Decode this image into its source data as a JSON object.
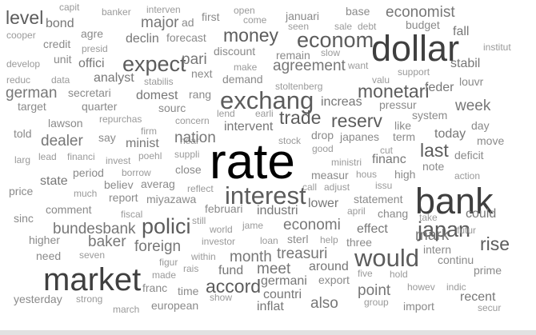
{
  "colors": {
    "small": "#9a9a9a",
    "mid": "#8a8a8a",
    "medium": "#777777",
    "large": "#5c5c5c",
    "huge": "#3f3f3f",
    "max": "#000000"
  },
  "words": [
    {
      "id": "level",
      "text": "level",
      "weight": 5
    },
    {
      "id": "capit",
      "text": "capit",
      "weight": 1
    },
    {
      "id": "banker",
      "text": "banker",
      "weight": 1
    },
    {
      "id": "interven",
      "text": "interven",
      "weight": 1
    },
    {
      "id": "ad",
      "text": "ad",
      "weight": 2
    },
    {
      "id": "first",
      "text": "first",
      "weight": 2
    },
    {
      "id": "open",
      "text": "open",
      "weight": 1
    },
    {
      "id": "januari",
      "text": "januari",
      "weight": 2
    },
    {
      "id": "base",
      "text": "base",
      "weight": 2
    },
    {
      "id": "economist",
      "text": "economist",
      "weight": 4
    },
    {
      "id": "cooper",
      "text": "cooper",
      "weight": 1
    },
    {
      "id": "bond",
      "text": "bond",
      "weight": 3
    },
    {
      "id": "major",
      "text": "major",
      "weight": 4
    },
    {
      "id": "come",
      "text": "come",
      "weight": 1
    },
    {
      "id": "seen",
      "text": "seen",
      "weight": 1
    },
    {
      "id": "sale",
      "text": "sale",
      "weight": 1
    },
    {
      "id": "debt",
      "text": "debt",
      "weight": 1
    },
    {
      "id": "budget",
      "text": "budget",
      "weight": 2
    },
    {
      "id": "agre",
      "text": "agre",
      "weight": 2
    },
    {
      "id": "declin",
      "text": "declin",
      "weight": 3
    },
    {
      "id": "forecast",
      "text": "forecast",
      "weight": 2
    },
    {
      "id": "money",
      "text": "money",
      "weight": 5
    },
    {
      "id": "econom",
      "text": "econom",
      "weight": 6
    },
    {
      "id": "fall",
      "text": "fall",
      "weight": 3
    },
    {
      "id": "dollar",
      "text": "dollar",
      "weight": 9
    },
    {
      "id": "credit",
      "text": "credit",
      "weight": 2
    },
    {
      "id": "presid",
      "text": "presid",
      "weight": 1
    },
    {
      "id": "discount",
      "text": "discount",
      "weight": 2
    },
    {
      "id": "slow",
      "text": "slow",
      "weight": 1
    },
    {
      "id": "institut",
      "text": "institut",
      "weight": 1
    },
    {
      "id": "develop",
      "text": "develop",
      "weight": 1
    },
    {
      "id": "unit",
      "text": "unit",
      "weight": 2
    },
    {
      "id": "expect",
      "text": "expect",
      "weight": 6
    },
    {
      "id": "pari",
      "text": "pari",
      "weight": 4
    },
    {
      "id": "remain",
      "text": "remain",
      "weight": 2
    },
    {
      "id": "offici",
      "text": "offici",
      "weight": 3
    },
    {
      "id": "make",
      "text": "make",
      "weight": 1
    },
    {
      "id": "agreement",
      "text": "agreement",
      "weight": 4
    },
    {
      "id": "want",
      "text": "want",
      "weight": 1
    },
    {
      "id": "stabil",
      "text": "stabil",
      "weight": 3
    },
    {
      "id": "next",
      "text": "next",
      "weight": 2
    },
    {
      "id": "support",
      "text": "support",
      "weight": 1
    },
    {
      "id": "reduc",
      "text": "reduc",
      "weight": 1
    },
    {
      "id": "data",
      "text": "data",
      "weight": 1
    },
    {
      "id": "analyst",
      "text": "analyst",
      "weight": 3
    },
    {
      "id": "stabilis",
      "text": "stabilis",
      "weight": 1
    },
    {
      "id": "demand",
      "text": "demand",
      "weight": 2
    },
    {
      "id": "valu",
      "text": "valu",
      "weight": 1
    },
    {
      "id": "louvr",
      "text": "louvr",
      "weight": 2
    },
    {
      "id": "german",
      "text": "german",
      "weight": 4
    },
    {
      "id": "secretari",
      "text": "secretari",
      "weight": 2
    },
    {
      "id": "domest",
      "text": "domest",
      "weight": 3
    },
    {
      "id": "rang",
      "text": "rang",
      "weight": 2
    },
    {
      "id": "stoltenberg",
      "text": "stoltenberg",
      "weight": 1
    },
    {
      "id": "monetari",
      "text": "monetari",
      "weight": 5
    },
    {
      "id": "feder",
      "text": "feder",
      "weight": 3
    },
    {
      "id": "exchang",
      "text": "exchang",
      "weight": 7
    },
    {
      "id": "target",
      "text": "target",
      "weight": 2
    },
    {
      "id": "quarter",
      "text": "quarter",
      "weight": 2
    },
    {
      "id": "sourc",
      "text": "sourc",
      "weight": 2
    },
    {
      "id": "increas",
      "text": "increas",
      "weight": 3
    },
    {
      "id": "pressur",
      "text": "pressur",
      "weight": 2
    },
    {
      "id": "week",
      "text": "week",
      "weight": 4
    },
    {
      "id": "lend",
      "text": "lend",
      "weight": 1
    },
    {
      "id": "earli",
      "text": "earli",
      "weight": 1
    },
    {
      "id": "lawson",
      "text": "lawson",
      "weight": 2
    },
    {
      "id": "repurchas",
      "text": "repurchas",
      "weight": 1
    },
    {
      "id": "concern",
      "text": "concern",
      "weight": 1
    },
    {
      "id": "trade",
      "text": "trade",
      "weight": 5
    },
    {
      "id": "reserv",
      "text": "reserv",
      "weight": 5
    },
    {
      "id": "system",
      "text": "system",
      "weight": 2
    },
    {
      "id": "day",
      "text": "day",
      "weight": 2
    },
    {
      "id": "told",
      "text": "told",
      "weight": 2
    },
    {
      "id": "firm",
      "text": "firm",
      "weight": 1
    },
    {
      "id": "near",
      "text": "near",
      "weight": 1
    },
    {
      "id": "intervent",
      "text": "intervent",
      "weight": 3
    },
    {
      "id": "like",
      "text": "like",
      "weight": 2
    },
    {
      "id": "dealer",
      "text": "dealer",
      "weight": 4
    },
    {
      "id": "say",
      "text": "say",
      "weight": 2
    },
    {
      "id": "minist",
      "text": "minist",
      "weight": 3
    },
    {
      "id": "nation",
      "text": "nation",
      "weight": 4
    },
    {
      "id": "drop",
      "text": "drop",
      "weight": 2
    },
    {
      "id": "japanes",
      "text": "japanes",
      "weight": 2
    },
    {
      "id": "term",
      "text": "term",
      "weight": 2
    },
    {
      "id": "today",
      "text": "today",
      "weight": 3
    },
    {
      "id": "move",
      "text": "move",
      "weight": 2
    },
    {
      "id": "larg",
      "text": "larg",
      "weight": 1
    },
    {
      "id": "lead",
      "text": "lead",
      "weight": 1
    },
    {
      "id": "financi",
      "text": "financi",
      "weight": 1
    },
    {
      "id": "poehl",
      "text": "poehl",
      "weight": 1
    },
    {
      "id": "stock",
      "text": "stock",
      "weight": 1
    },
    {
      "id": "good",
      "text": "good",
      "weight": 1
    },
    {
      "id": "last",
      "text": "last",
      "weight": 5
    },
    {
      "id": "deficit",
      "text": "deficit",
      "weight": 2
    },
    {
      "id": "invest",
      "text": "invest",
      "weight": 1
    },
    {
      "id": "suppli",
      "text": "suppli",
      "weight": 1
    },
    {
      "id": "cut",
      "text": "cut",
      "weight": 1
    },
    {
      "id": "period",
      "text": "period",
      "weight": 2
    },
    {
      "id": "close",
      "text": "close",
      "weight": 2
    },
    {
      "id": "ministri",
      "text": "ministri",
      "weight": 1
    },
    {
      "id": "financ",
      "text": "financ",
      "weight": 3
    },
    {
      "id": "note",
      "text": "note",
      "weight": 2
    },
    {
      "id": "state",
      "text": "state",
      "weight": 3
    },
    {
      "id": "borrow",
      "text": "borrow",
      "weight": 1
    },
    {
      "id": "rate",
      "text": "rate",
      "weight": 10
    },
    {
      "id": "measur",
      "text": "measur",
      "weight": 2
    },
    {
      "id": "hous",
      "text": "hous",
      "weight": 1
    },
    {
      "id": "high",
      "text": "high",
      "weight": 2
    },
    {
      "id": "action",
      "text": "action",
      "weight": 1
    },
    {
      "id": "believ",
      "text": "believ",
      "weight": 2
    },
    {
      "id": "averag",
      "text": "averag",
      "weight": 2
    },
    {
      "id": "call",
      "text": "call",
      "weight": 1
    },
    {
      "id": "adjust",
      "text": "adjust",
      "weight": 1
    },
    {
      "id": "issu",
      "text": "issu",
      "weight": 1
    },
    {
      "id": "price",
      "text": "price",
      "weight": 2
    },
    {
      "id": "much",
      "text": "much",
      "weight": 1
    },
    {
      "id": "report",
      "text": "report",
      "weight": 2
    },
    {
      "id": "reflect",
      "text": "reflect",
      "weight": 1
    },
    {
      "id": "interest",
      "text": "interest",
      "weight": 7
    },
    {
      "id": "bank",
      "text": "bank",
      "weight": 9
    },
    {
      "id": "miyazawa",
      "text": "miyazawa",
      "weight": 2
    },
    {
      "id": "lower",
      "text": "lower",
      "weight": 3
    },
    {
      "id": "statement",
      "text": "statement",
      "weight": 2
    },
    {
      "id": "comment",
      "text": "comment",
      "weight": 2
    },
    {
      "id": "februari",
      "text": "februari",
      "weight": 2
    },
    {
      "id": "industri",
      "text": "industri",
      "weight": 3
    },
    {
      "id": "april",
      "text": "april",
      "weight": 1
    },
    {
      "id": "chang",
      "text": "chang",
      "weight": 2
    },
    {
      "id": "take",
      "text": "take",
      "weight": 1
    },
    {
      "id": "could",
      "text": "could",
      "weight": 3
    },
    {
      "id": "sinc",
      "text": "sinc",
      "weight": 2
    },
    {
      "id": "fiscal",
      "text": "fiscal",
      "weight": 1
    },
    {
      "id": "polici",
      "text": "polici",
      "weight": 6
    },
    {
      "id": "still",
      "text": "still",
      "weight": 1
    },
    {
      "id": "world",
      "text": "world",
      "weight": 1
    },
    {
      "id": "jame",
      "text": "jame",
      "weight": 1
    },
    {
      "id": "economi",
      "text": "economi",
      "weight": 4
    },
    {
      "id": "effect",
      "text": "effect",
      "weight": 3
    },
    {
      "id": "japan",
      "text": "japan",
      "weight": 6
    },
    {
      "id": "futur",
      "text": "futur",
      "weight": 1
    },
    {
      "id": "bundesbank",
      "text": "bundesbank",
      "weight": 4
    },
    {
      "id": "mark",
      "text": "mark",
      "weight": 4
    },
    {
      "id": "higher",
      "text": "higher",
      "weight": 2
    },
    {
      "id": "baker",
      "text": "baker",
      "weight": 4
    },
    {
      "id": "investor",
      "text": "investor",
      "weight": 1
    },
    {
      "id": "loan",
      "text": "loan",
      "weight": 1
    },
    {
      "id": "sterl",
      "text": "sterl",
      "weight": 2
    },
    {
      "id": "help",
      "text": "help",
      "weight": 1
    },
    {
      "id": "three",
      "text": "three",
      "weight": 2
    },
    {
      "id": "rise",
      "text": "rise",
      "weight": 5
    },
    {
      "id": "foreign",
      "text": "foreign",
      "weight": 4
    },
    {
      "id": "would",
      "text": "would",
      "weight": 7
    },
    {
      "id": "intern",
      "text": "intern",
      "weight": 2
    },
    {
      "id": "need",
      "text": "need",
      "weight": 2
    },
    {
      "id": "seven",
      "text": "seven",
      "weight": 1
    },
    {
      "id": "within",
      "text": "within",
      "weight": 1
    },
    {
      "id": "month",
      "text": "month",
      "weight": 4
    },
    {
      "id": "treasuri",
      "text": "treasuri",
      "weight": 4
    },
    {
      "id": "continu",
      "text": "continu",
      "weight": 2
    },
    {
      "id": "figur",
      "text": "figur",
      "weight": 1
    },
    {
      "id": "rais",
      "text": "rais",
      "weight": 1
    },
    {
      "id": "market",
      "text": "market",
      "weight": 8
    },
    {
      "id": "made",
      "text": "made",
      "weight": 1
    },
    {
      "id": "fund",
      "text": "fund",
      "weight": 3
    },
    {
      "id": "meet",
      "text": "meet",
      "weight": 4
    },
    {
      "id": "around",
      "text": "around",
      "weight": 3
    },
    {
      "id": "five",
      "text": "five",
      "weight": 1
    },
    {
      "id": "hold",
      "text": "hold",
      "weight": 1
    },
    {
      "id": "prime",
      "text": "prime",
      "weight": 2
    },
    {
      "id": "accord",
      "text": "accord",
      "weight": 5
    },
    {
      "id": "germani",
      "text": "germani",
      "weight": 3
    },
    {
      "id": "export",
      "text": "export",
      "weight": 2
    },
    {
      "id": "howev",
      "text": "howev",
      "weight": 1
    },
    {
      "id": "indic",
      "text": "indic",
      "weight": 1
    },
    {
      "id": "franc",
      "text": "franc",
      "weight": 2
    },
    {
      "id": "time",
      "text": "time",
      "weight": 2
    },
    {
      "id": "point",
      "text": "point",
      "weight": 4
    },
    {
      "id": "recent",
      "text": "recent",
      "weight": 3
    },
    {
      "id": "yesterday",
      "text": "yesterday",
      "weight": 2
    },
    {
      "id": "strong",
      "text": "strong",
      "weight": 1
    },
    {
      "id": "show",
      "text": "show",
      "weight": 1
    },
    {
      "id": "countri",
      "text": "countri",
      "weight": 3
    },
    {
      "id": "also",
      "text": "also",
      "weight": 4
    },
    {
      "id": "group",
      "text": "group",
      "weight": 1
    },
    {
      "id": "import",
      "text": "import",
      "weight": 2
    },
    {
      "id": "march",
      "text": "march",
      "weight": 1
    },
    {
      "id": "european",
      "text": "european",
      "weight": 2
    },
    {
      "id": "inflat",
      "text": "inflat",
      "weight": 3
    },
    {
      "id": "secur",
      "text": "secur",
      "weight": 1
    }
  ]
}
